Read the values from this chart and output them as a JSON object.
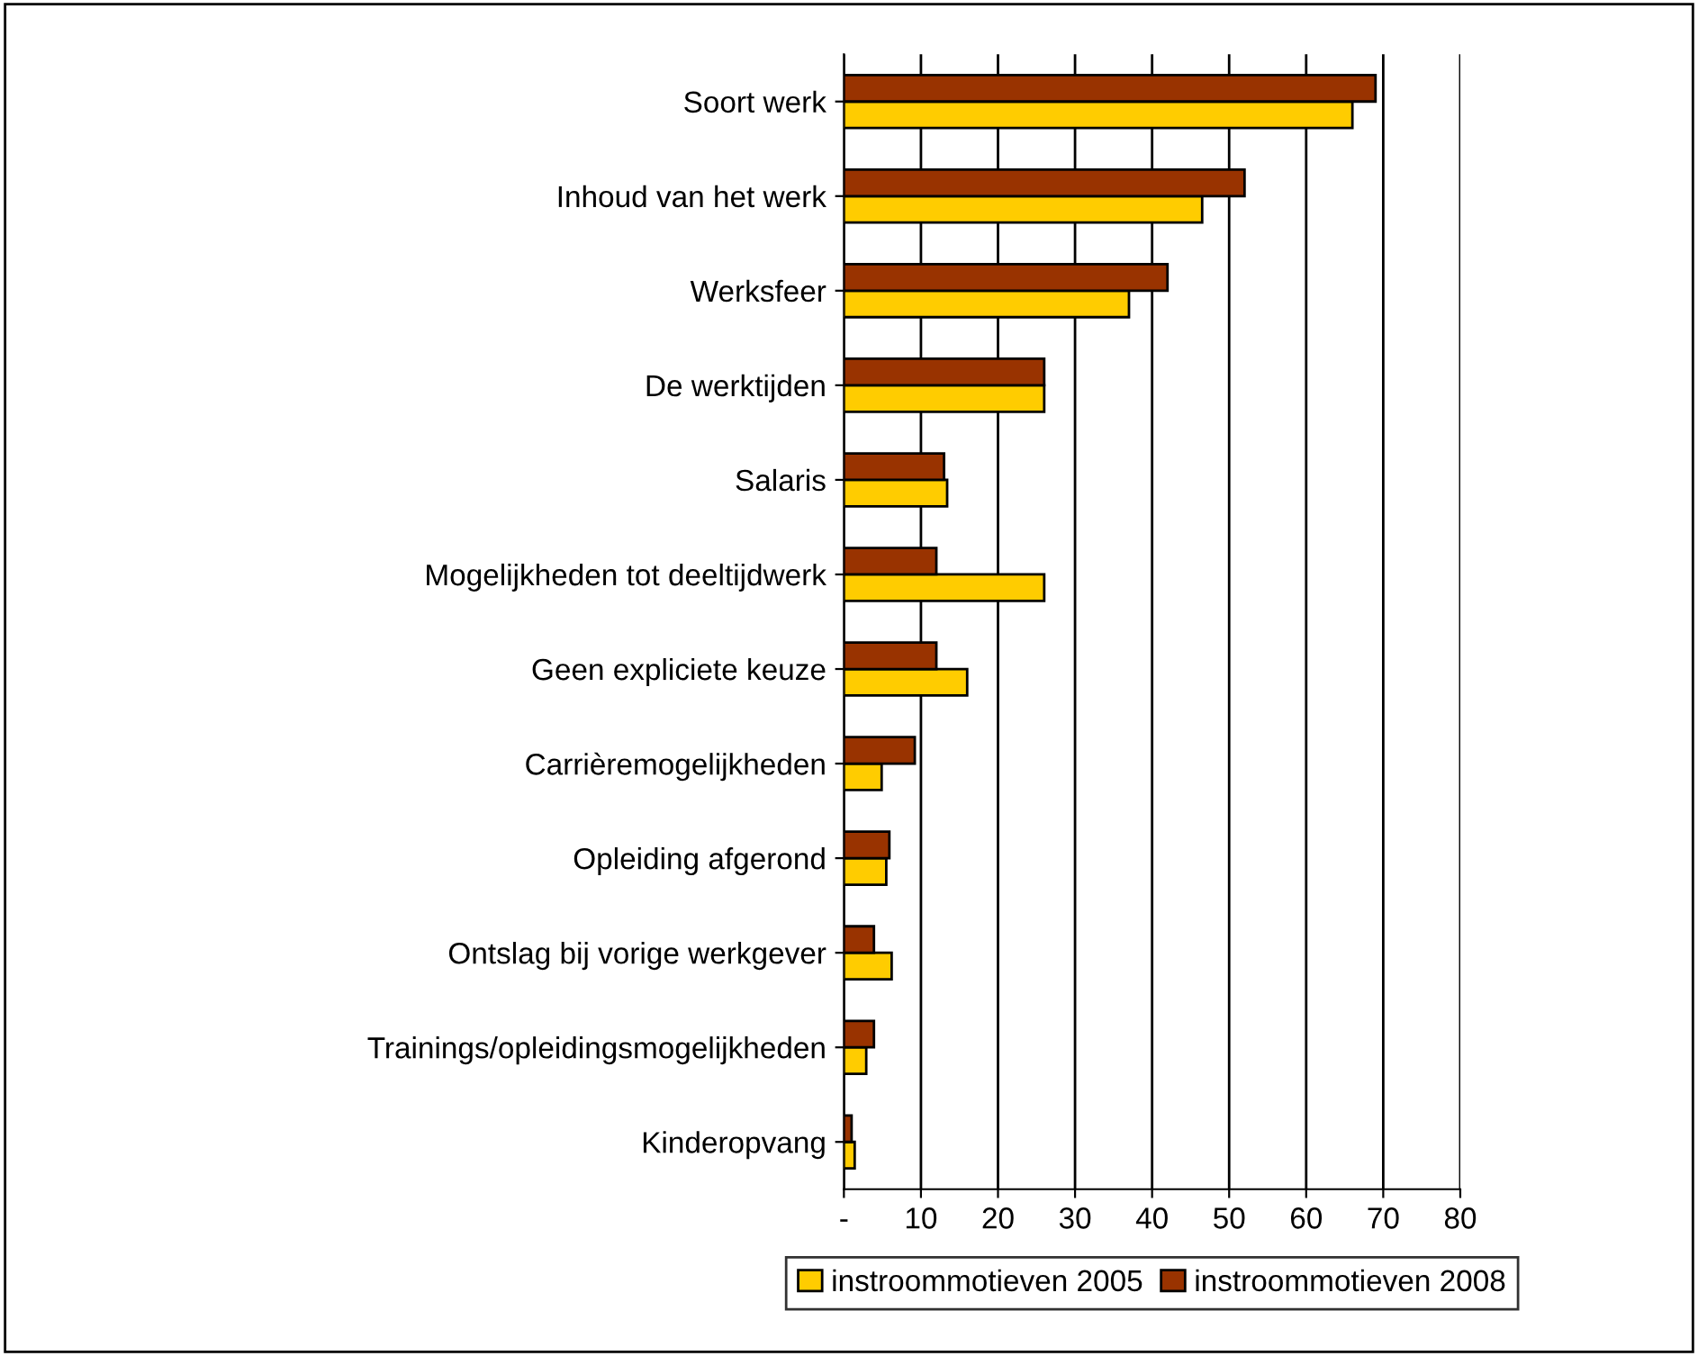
{
  "chart_data": {
    "type": "bar",
    "orientation": "horizontal",
    "categories": [
      "Soort werk",
      "Inhoud van het werk",
      "Werksfeer",
      "De werktijden",
      "Salaris",
      "Mogelijkheden tot deeltijdwerk",
      "Geen expliciete keuze",
      "Carrièremogelijkheden",
      "Opleiding afgerond",
      "Ontslag bij vorige werkgever",
      "Trainings/opleidingsmogelijkheden",
      "Kinderopvang"
    ],
    "series": [
      {
        "name": "instroommotieven 2005",
        "color": "#ffcc00",
        "values": [
          66,
          46.5,
          37,
          26,
          13.4,
          26,
          16,
          4.9,
          5.5,
          6.2,
          2.9,
          1.4
        ]
      },
      {
        "name": "instroommotieven 2008",
        "color": "#993300",
        "values": [
          69,
          52,
          42,
          26,
          13,
          12,
          12,
          9.2,
          5.9,
          3.9,
          3.9,
          1.0
        ]
      }
    ],
    "xlim": [
      0,
      80
    ],
    "xticks": [
      {
        "value": 0,
        "label": "-"
      },
      10,
      20,
      30,
      40,
      50,
      60,
      70,
      80
    ],
    "grid": "x",
    "legend": "bottom"
  }
}
